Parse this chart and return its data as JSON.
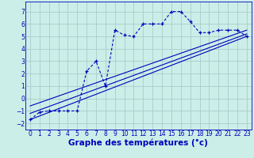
{
  "bg_color": "#cceee8",
  "grid_color": "#aacccc",
  "line_color": "#0000bb",
  "xlabel": "Graphe des températures (°c)",
  "xlabel_fontsize": 7.5,
  "xlim": [
    -0.5,
    23.5
  ],
  "ylim": [
    -2.5,
    7.8
  ],
  "yticks": [
    -2,
    -1,
    0,
    1,
    2,
    3,
    4,
    5,
    6,
    7
  ],
  "xticks": [
    0,
    1,
    2,
    3,
    4,
    5,
    6,
    7,
    8,
    9,
    10,
    11,
    12,
    13,
    14,
    15,
    16,
    17,
    18,
    19,
    20,
    21,
    22,
    23
  ],
  "main_x": [
    0,
    1,
    2,
    3,
    4,
    5,
    6,
    7,
    8,
    9,
    10,
    11,
    12,
    13,
    14,
    15,
    16,
    17,
    18,
    19,
    20,
    21,
    22,
    23
  ],
  "main_y": [
    -1.7,
    -1.1,
    -1.0,
    -1.0,
    -1.0,
    -1.0,
    2.2,
    3.0,
    1.0,
    5.5,
    5.1,
    5.0,
    6.0,
    6.0,
    6.0,
    7.0,
    7.0,
    6.2,
    5.3,
    5.3,
    5.5,
    5.5,
    5.5,
    5.0
  ],
  "trend1_x": [
    0,
    23
  ],
  "trend1_y": [
    -1.7,
    5.0
  ],
  "trend2_x": [
    0,
    23
  ],
  "trend2_y": [
    -1.2,
    5.2
  ],
  "trend3_x": [
    0,
    23
  ],
  "trend3_y": [
    -0.6,
    5.5
  ]
}
